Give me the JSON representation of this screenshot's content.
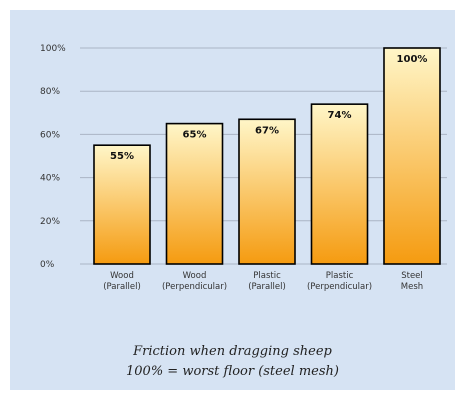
{
  "chart_data": {
    "type": "bar",
    "categories": [
      [
        "Wood",
        "(Parallel)"
      ],
      [
        "Wood",
        "(Perpendicular)"
      ],
      [
        "Plastic",
        "(Parallel)"
      ],
      [
        "Plastic",
        "(Perpendicular)"
      ],
      [
        "Steel",
        "Mesh"
      ]
    ],
    "values": [
      55,
      65,
      67,
      74,
      100
    ],
    "value_labels": [
      "55%",
      "65%",
      "67%",
      "74%",
      "100%"
    ],
    "y_ticks": [
      0,
      20,
      40,
      60,
      80,
      100
    ],
    "y_tick_labels": [
      "0%",
      "20%",
      "40%",
      "60%",
      "80%",
      "100%"
    ],
    "ylim": [
      0,
      100
    ],
    "grid": true,
    "colors": {
      "bar_top": "#fff6c8",
      "bar_bottom": "#f59b10",
      "background": "#d6e3f3",
      "grid": "#aab4c4"
    }
  },
  "caption": {
    "line1": "Friction when dragging sheep",
    "line2": "100% = worst floor (steel mesh)"
  }
}
